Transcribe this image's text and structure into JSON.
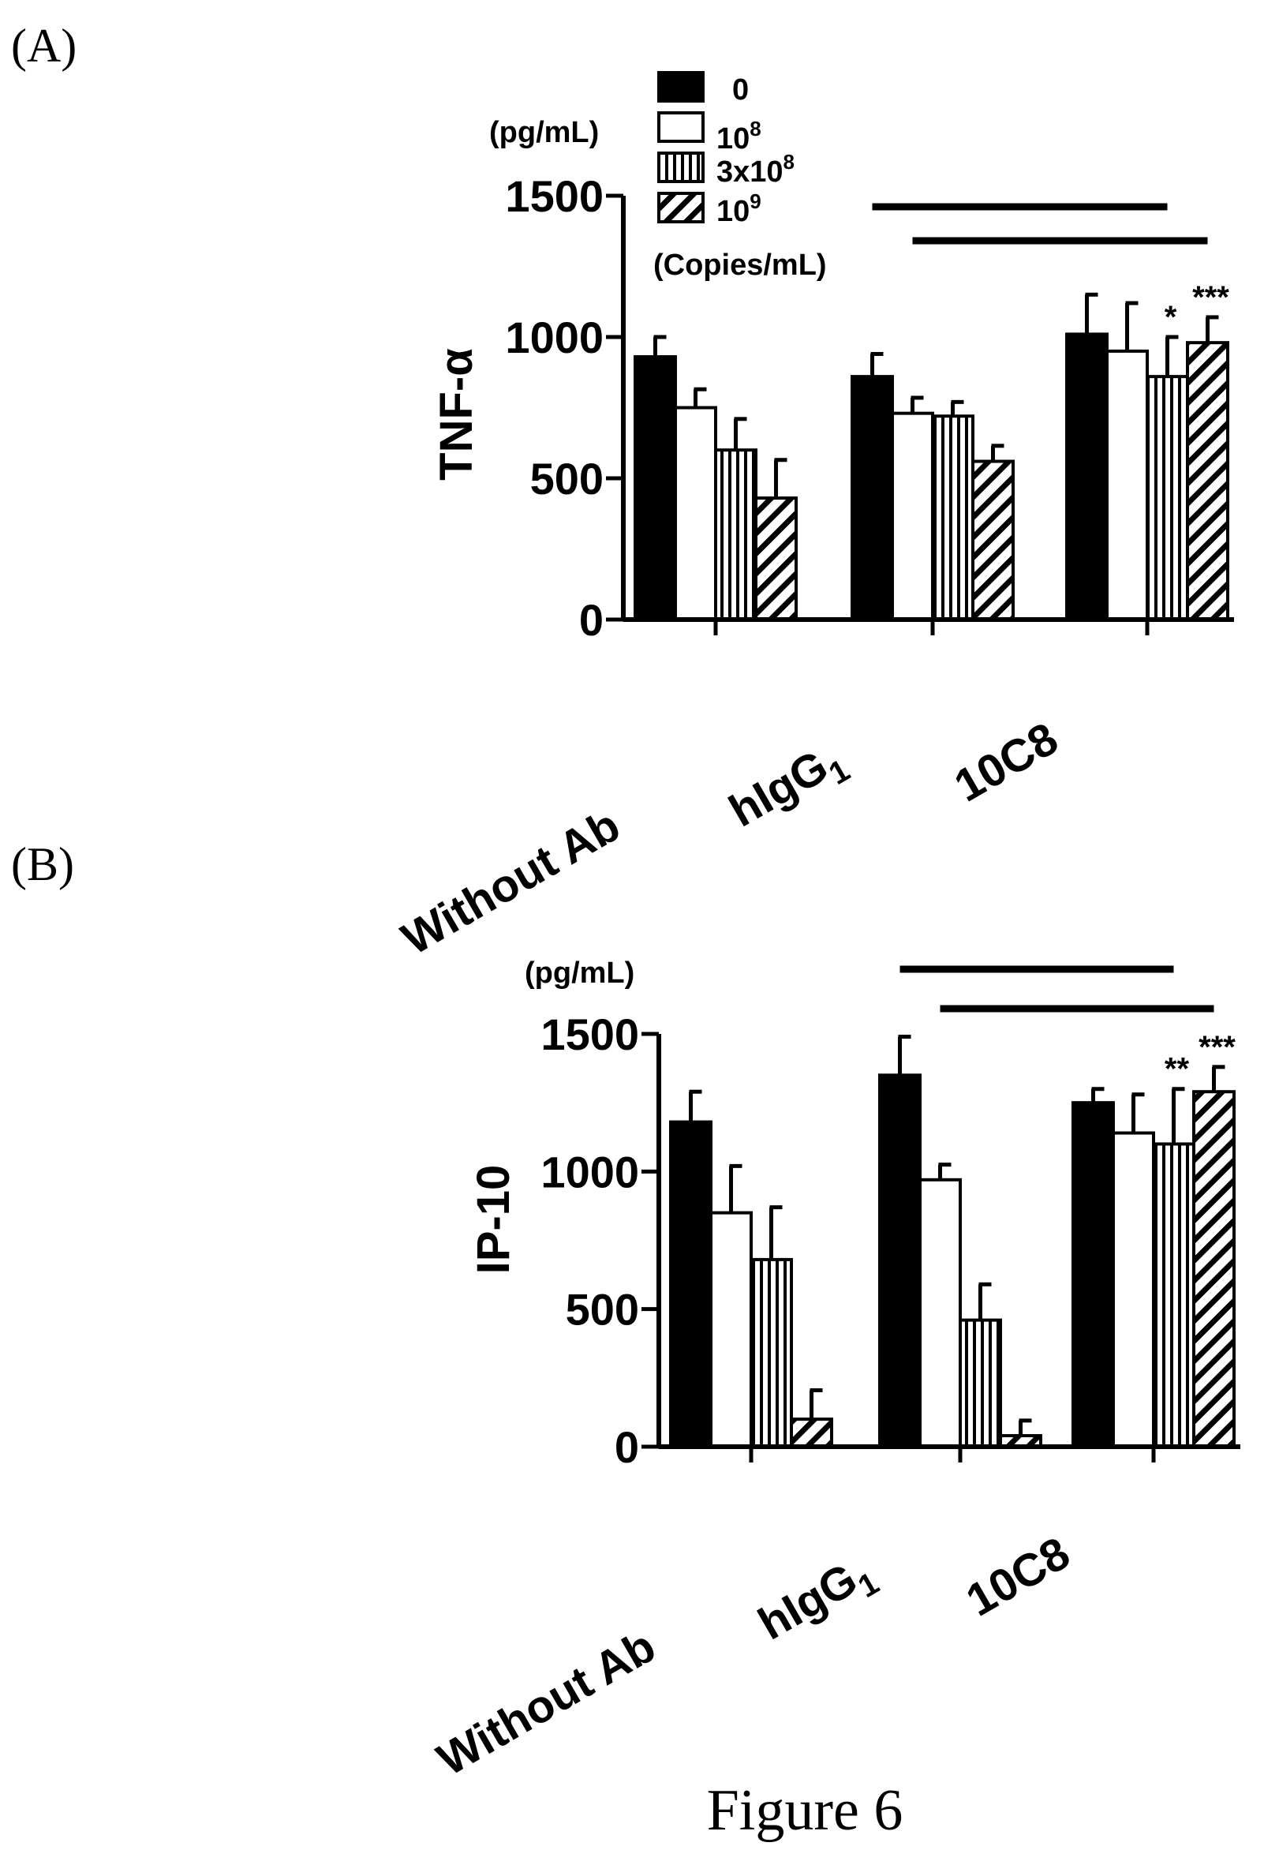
{
  "figure_caption": "Figure 6",
  "legend": {
    "items": [
      {
        "base": "0",
        "exp": ""
      },
      {
        "base": "10",
        "exp": "8"
      },
      {
        "base": "3x10",
        "exp": "8"
      },
      {
        "base": "10",
        "exp": "9"
      }
    ],
    "unit": "(Copies/mL)"
  },
  "colors": {
    "bar_fill": "#000000",
    "bar_empty": "#ffffff",
    "ink": "#000000"
  },
  "chart_data": [
    {
      "panel": "(A)",
      "type": "bar",
      "ylabel": "TNF-α",
      "unit_label": "(pg/mL)",
      "ylim": [
        0,
        1500
      ],
      "yticks": [
        0,
        500,
        1000,
        1500
      ],
      "categories": [
        {
          "text": "Without Ab",
          "sub": ""
        },
        {
          "text": "hIgG",
          "sub": "1"
        },
        {
          "text": "10C8",
          "sub": ""
        }
      ],
      "series": [
        {
          "pattern": "solid",
          "values": [
            930,
            860,
            1010
          ],
          "errors": [
            70,
            80,
            140
          ]
        },
        {
          "pattern": "open",
          "values": [
            750,
            730,
            950
          ],
          "errors": [
            65,
            55,
            170
          ]
        },
        {
          "pattern": "vertical",
          "values": [
            600,
            720,
            860
          ],
          "errors": [
            110,
            50,
            140
          ]
        },
        {
          "pattern": "diagonal",
          "values": [
            430,
            560,
            980
          ],
          "errors": [
            135,
            55,
            90
          ]
        }
      ],
      "annotations": [
        {
          "text": "*",
          "category": 2,
          "series": 2
        },
        {
          "text": "***",
          "category": 2,
          "series": 3
        }
      ],
      "brackets": [
        {
          "from_category": 1,
          "from_series": 0,
          "to_category": 2,
          "to_series": 2
        },
        {
          "from_category": 1,
          "from_series": 1,
          "to_category": 2,
          "to_series": 3
        }
      ]
    },
    {
      "panel": "(B)",
      "type": "bar",
      "ylabel": "IP-10",
      "unit_label": "(pg/mL)",
      "ylim": [
        0,
        1500
      ],
      "yticks": [
        0,
        500,
        1000,
        1500
      ],
      "categories": [
        {
          "text": "Without Ab",
          "sub": ""
        },
        {
          "text": "hIgG",
          "sub": "1"
        },
        {
          "text": "10C8",
          "sub": ""
        }
      ],
      "series": [
        {
          "pattern": "solid",
          "values": [
            1180,
            1350,
            1250
          ],
          "errors": [
            110,
            140,
            50
          ]
        },
        {
          "pattern": "open",
          "values": [
            850,
            970,
            1140
          ],
          "errors": [
            170,
            55,
            140
          ]
        },
        {
          "pattern": "vertical",
          "values": [
            680,
            460,
            1100
          ],
          "errors": [
            190,
            130,
            200
          ]
        },
        {
          "pattern": "diagonal",
          "values": [
            100,
            40,
            1290
          ],
          "errors": [
            105,
            55,
            90
          ]
        }
      ],
      "annotations": [
        {
          "text": "**",
          "category": 2,
          "series": 2
        },
        {
          "text": "***",
          "category": 2,
          "series": 3
        }
      ],
      "brackets": [
        {
          "from_category": 1,
          "from_series": 0,
          "to_category": 2,
          "to_series": 2
        },
        {
          "from_category": 1,
          "from_series": 1,
          "to_category": 2,
          "to_series": 3
        }
      ]
    }
  ]
}
